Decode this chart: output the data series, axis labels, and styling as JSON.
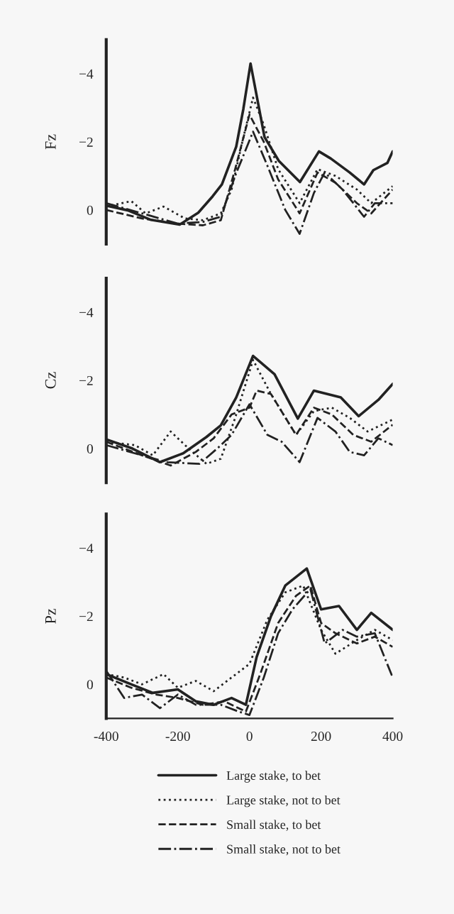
{
  "chart_data": [
    {
      "type": "line",
      "ylabel": "Fz",
      "xlim": [
        -400,
        400
      ],
      "ylim": [
        1,
        -5
      ],
      "yticks": [
        {
          "value": 0,
          "label": "0"
        },
        {
          "value": -2,
          "label": "−2"
        },
        {
          "value": -4,
          "label": "−4"
        }
      ],
      "tick_labels": "y",
      "grid": false,
      "legend": false,
      "series": [
        {
          "color": "#222222",
          "line_style": "solid",
          "x": [
            -400,
            -340,
            -275,
            -195,
            -143,
            -103,
            -77,
            -37,
            -17,
            3,
            42,
            82,
            141,
            194,
            227,
            280,
            320,
            346,
            385,
            400
          ],
          "values": [
            -0.13,
            0.01,
            0.29,
            0.43,
            0.08,
            -0.4,
            -0.75,
            -1.86,
            -2.97,
            -4.3,
            -2.14,
            -1.44,
            -0.82,
            -1.72,
            -1.51,
            -1.1,
            -0.75,
            -1.17,
            -1.38,
            -1.72
          ]
        },
        {
          "color": "#222222",
          "line_style": "dotted",
          "x": [
            -400,
            -330,
            -290,
            -240,
            -180,
            -130,
            -80,
            -50,
            -20,
            10,
            40,
            80,
            140,
            190,
            240,
            300,
            340,
            400
          ],
          "values": [
            -0.1,
            -0.26,
            0.1,
            -0.1,
            0.25,
            0.3,
            0.1,
            -0.6,
            -2.0,
            -3.3,
            -2.5,
            -1.2,
            -0.2,
            -1.2,
            -1.0,
            -0.6,
            -0.2,
            -0.7
          ]
        },
        {
          "color": "#222222",
          "line_style": "dashed",
          "x": [
            -400,
            -300,
            -200,
            -130,
            -80,
            -40,
            0,
            40,
            80,
            140,
            190,
            240,
            300,
            340,
            400
          ],
          "values": [
            0,
            0.25,
            0.4,
            0.45,
            0.3,
            -1.2,
            -2.8,
            -2.0,
            -0.9,
            0.1,
            -1.1,
            -0.8,
            -0.2,
            0.1,
            -0.6
          ]
        },
        {
          "color": "#222222",
          "line_style": "dashdot",
          "x": [
            -400,
            -300,
            -200,
            -130,
            -80,
            -40,
            10,
            50,
            100,
            140,
            180,
            210,
            260,
            320,
            350,
            400
          ],
          "values": [
            -0.2,
            0.1,
            0.4,
            0.35,
            0.2,
            -1.0,
            -2.3,
            -1.3,
            0.0,
            0.7,
            -0.5,
            -1.1,
            -0.6,
            0.2,
            -0.2,
            -0.2
          ]
        }
      ]
    },
    {
      "type": "line",
      "ylabel": "Cz",
      "xlim": [
        -400,
        400
      ],
      "ylim": [
        1,
        -5
      ],
      "yticks": [
        {
          "value": 0,
          "label": "0"
        },
        {
          "value": -2,
          "label": "−2"
        },
        {
          "value": -4,
          "label": "−4"
        }
      ],
      "tick_labels": "y",
      "grid": false,
      "legend": false,
      "series": [
        {
          "color": "#222222",
          "line_style": "solid",
          "x": [
            -400,
            -327,
            -250,
            -185,
            -120,
            -80,
            -37,
            10,
            70,
            135,
            180,
            255,
            305,
            360,
            400
          ],
          "values": [
            -0.27,
            0,
            0.4,
            0.14,
            -0.34,
            -0.68,
            -1.5,
            -2.72,
            -2.18,
            -0.88,
            -1.7,
            -1.5,
            -0.95,
            -1.43,
            -1.9
          ]
        },
        {
          "color": "#222222",
          "line_style": "dotted",
          "x": [
            -400,
            -320,
            -270,
            -220,
            -170,
            -120,
            -80,
            -40,
            10,
            60,
            130,
            180,
            230,
            280,
            330,
            400
          ],
          "values": [
            -0.2,
            -0.1,
            0.2,
            -0.5,
            0.0,
            0.45,
            0.3,
            -0.9,
            -2.6,
            -1.6,
            -0.4,
            -1.1,
            -1.2,
            -0.9,
            -0.5,
            -0.85
          ]
        },
        {
          "color": "#222222",
          "line_style": "dashed",
          "x": [
            -400,
            -300,
            -220,
            -150,
            -100,
            -50,
            0,
            20,
            60,
            130,
            180,
            230,
            290,
            340,
            400
          ],
          "values": [
            -0.2,
            0.2,
            0.5,
            0.1,
            -0.3,
            -1.0,
            -1.2,
            -1.7,
            -1.6,
            -0.4,
            -1.2,
            -1.0,
            -0.4,
            -0.2,
            -0.7
          ]
        },
        {
          "color": "#222222",
          "line_style": "dashdot",
          "x": [
            -400,
            -300,
            -230,
            -140,
            -90,
            -50,
            0,
            50,
            90,
            140,
            190,
            240,
            280,
            320,
            360,
            400
          ],
          "values": [
            -0.1,
            0.2,
            0.4,
            0.45,
            0.0,
            -0.4,
            -1.3,
            -0.4,
            -0.2,
            0.4,
            -0.9,
            -0.5,
            0.1,
            0.2,
            -0.3,
            -0.1
          ]
        }
      ]
    },
    {
      "type": "line",
      "ylabel": "Pz",
      "xlim": [
        -400,
        400
      ],
      "xticks": [
        -400,
        -200,
        0,
        200,
        400
      ],
      "ylim": [
        1,
        -5
      ],
      "yticks": [
        {
          "value": 0,
          "label": "0"
        },
        {
          "value": -2,
          "label": "−2"
        },
        {
          "value": -4,
          "label": "−4"
        }
      ],
      "grid": false,
      "legend": "bottom",
      "series": [
        {
          "name": "Large stake, to bet",
          "color": "#222222",
          "line_style": "solid",
          "x": [
            -400,
            -330,
            -270,
            -200,
            -150,
            -100,
            -50,
            -10,
            20,
            60,
            100,
            160,
            200,
            250,
            300,
            340,
            400
          ],
          "values": [
            -0.3,
            0.0,
            0.25,
            0.15,
            0.5,
            0.6,
            0.4,
            0.6,
            -0.8,
            -2.0,
            -2.9,
            -3.4,
            -2.2,
            -2.3,
            -1.6,
            -2.1,
            -1.6
          ]
        },
        {
          "name": "Large stake, not to bet",
          "color": "#222222",
          "line_style": "dotted",
          "x": [
            -400,
            -350,
            -300,
            -240,
            -200,
            -150,
            -100,
            -50,
            0,
            50,
            100,
            150,
            200,
            240,
            300,
            350,
            400
          ],
          "values": [
            -0.3,
            -0.2,
            0.0,
            -0.3,
            0.1,
            -0.1,
            0.2,
            -0.2,
            -0.6,
            -1.9,
            -2.7,
            -2.9,
            -1.6,
            -0.9,
            -1.3,
            -1.6,
            -1.3
          ]
        },
        {
          "name": "Small stake, to bet",
          "color": "#222222",
          "line_style": "dashed",
          "x": [
            -400,
            -330,
            -260,
            -200,
            -130,
            -70,
            -10,
            30,
            80,
            130,
            170,
            200,
            240,
            300,
            350,
            400
          ],
          "values": [
            -0.2,
            0.1,
            0.3,
            0.4,
            0.6,
            0.5,
            0.8,
            -0.3,
            -1.8,
            -2.6,
            -2.9,
            -1.8,
            -1.5,
            -1.2,
            -1.4,
            -1.1
          ]
        },
        {
          "name": "Small stake, not to bet",
          "color": "#222222",
          "line_style": "dashdot",
          "x": [
            -400,
            -350,
            -300,
            -250,
            -200,
            -150,
            -80,
            -30,
            0,
            40,
            80,
            120,
            170,
            210,
            260,
            300,
            350,
            400
          ],
          "values": [
            -0.4,
            0.4,
            0.3,
            0.7,
            0.3,
            0.6,
            0.6,
            0.8,
            0.9,
            -0.2,
            -1.5,
            -2.2,
            -2.8,
            -1.2,
            -1.6,
            -1.4,
            -1.5,
            -0.2
          ]
        }
      ]
    }
  ]
}
